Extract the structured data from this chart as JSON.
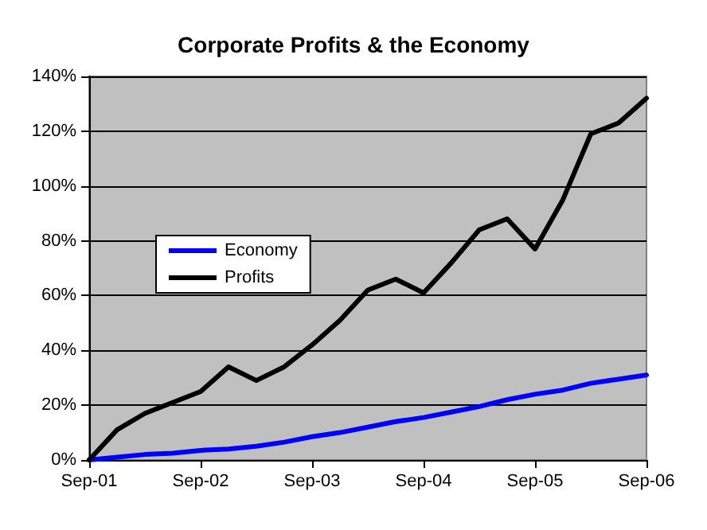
{
  "chart_data": {
    "type": "line",
    "title": "Corporate Profits & the Economy",
    "categories": [
      "Sep-01",
      null,
      null,
      null,
      "Sep-02",
      null,
      null,
      null,
      "Sep-03",
      null,
      null,
      null,
      "Sep-04",
      null,
      null,
      null,
      "Sep-05",
      null,
      null,
      null,
      "Sep-06"
    ],
    "series": [
      {
        "name": "Economy",
        "color": "#0000ff",
        "values": [
          0,
          1,
          2,
          2.5,
          3.5,
          4,
          5,
          6.5,
          8.5,
          10,
          12,
          14,
          15.5,
          17.5,
          19.5,
          22,
          24,
          25.5,
          28,
          29.5,
          31
        ]
      },
      {
        "name": "Profits",
        "color": "#000000",
        "values": [
          0,
          11,
          17,
          21,
          25,
          34,
          29,
          34,
          42,
          51,
          62,
          66,
          61,
          72,
          84,
          88,
          77,
          95,
          119,
          123,
          132
        ]
      }
    ],
    "ylim": [
      0,
      140
    ],
    "yticks": [
      {
        "value": 0,
        "label": "0%"
      },
      {
        "value": 20,
        "label": "20%"
      },
      {
        "value": 40,
        "label": "40%"
      },
      {
        "value": 60,
        "label": "60%"
      },
      {
        "value": 80,
        "label": "80%"
      },
      {
        "value": 100,
        "label": "100%"
      },
      {
        "value": 120,
        "label": "120%"
      },
      {
        "value": 140,
        "label": "140%"
      }
    ],
    "grid": "y",
    "legend": "left",
    "marker": "none",
    "line_style": "solid"
  }
}
